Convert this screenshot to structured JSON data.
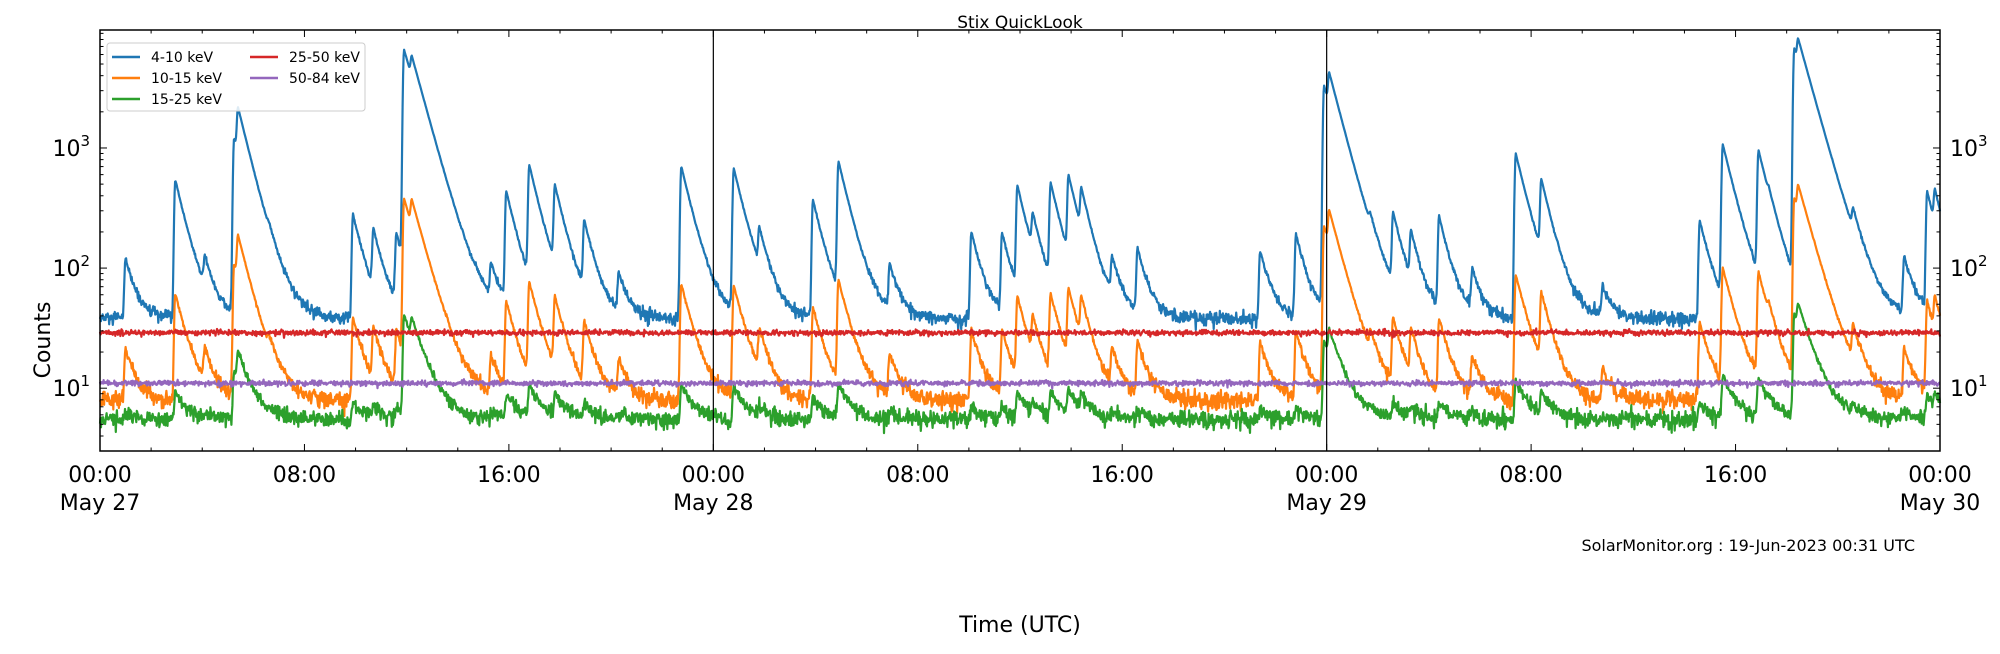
{
  "chart_data": {
    "type": "line",
    "title": "Stix QuickLook",
    "xlabel": "Time (UTC)",
    "ylabel": "Counts",
    "yscale": "log",
    "ylim": [
      3.0,
      9600
    ],
    "xlim": [
      "May 27 00:00",
      "May 30 00:00"
    ],
    "yticks": [
      {
        "value": 10,
        "label": "10",
        "exp": "1"
      },
      {
        "value": 100,
        "label": "10",
        "exp": "2"
      },
      {
        "value": 1000,
        "label": "10",
        "exp": "3"
      }
    ],
    "xticks": [
      {
        "time": "May 27 00:00",
        "label": "00:00",
        "sublabel": "May 27"
      },
      {
        "time": "May 27 08:00",
        "label": "08:00",
        "sublabel": ""
      },
      {
        "time": "May 27 16:00",
        "label": "16:00",
        "sublabel": ""
      },
      {
        "time": "May 28 00:00",
        "label": "00:00",
        "sublabel": "May 28"
      },
      {
        "time": "May 28 08:00",
        "label": "08:00",
        "sublabel": ""
      },
      {
        "time": "May 28 16:00",
        "label": "16:00",
        "sublabel": ""
      },
      {
        "time": "May 29 00:00",
        "label": "00:00",
        "sublabel": "May 29"
      },
      {
        "time": "May 29 08:00",
        "label": "08:00",
        "sublabel": ""
      },
      {
        "time": "May 29 16:00",
        "label": "16:00",
        "sublabel": ""
      },
      {
        "time": "May 30 00:00",
        "label": "00:00",
        "sublabel": "May 30"
      }
    ],
    "day_boundaries": [
      "May 28 00:00",
      "May 29 00:00"
    ],
    "grid": false,
    "legend": "top-left",
    "series": [
      {
        "name": "4-10 keV",
        "color": "#1f77b4",
        "baseline": 38
      },
      {
        "name": "10-15 keV",
        "color": "#ff7f0e",
        "baseline": 8
      },
      {
        "name": "15-25 keV",
        "color": "#2ca02c",
        "baseline": 5.5
      },
      {
        "name": "25-50 keV",
        "color": "#d62728",
        "baseline": 29
      },
      {
        "name": "50-84 keV",
        "color": "#9467bd",
        "baseline": 11
      }
    ],
    "flares_4_10_keV": [
      {
        "time": "May 27 01:00",
        "peak": 120
      },
      {
        "time": "May 27 02:57",
        "peak": 540
      },
      {
        "time": "May 27 04:06",
        "peak": 90
      },
      {
        "time": "May 27 05:15",
        "peak": 1200
      },
      {
        "time": "May 27 05:24",
        "peak": 1330
      },
      {
        "time": "May 27 06:36",
        "peak": 60
      },
      {
        "time": "May 27 09:54",
        "peak": 280
      },
      {
        "time": "May 27 10:42",
        "peak": 180
      },
      {
        "time": "May 27 11:36",
        "peak": 180
      },
      {
        "time": "May 27 11:54",
        "peak": 6500
      },
      {
        "time": "May 27 12:12",
        "peak": 2000
      },
      {
        "time": "May 27 15:18",
        "peak": 90
      },
      {
        "time": "May 27 15:54",
        "peak": 420
      },
      {
        "time": "May 27 16:48",
        "peak": 670
      },
      {
        "time": "May 27 17:48",
        "peak": 420
      },
      {
        "time": "May 27 18:57",
        "peak": 220
      },
      {
        "time": "May 27 20:18",
        "peak": 85
      },
      {
        "time": "May 27 22:45",
        "peak": 700
      },
      {
        "time": "May 28 00:48",
        "peak": 670
      },
      {
        "time": "May 28 01:48",
        "peak": 150
      },
      {
        "time": "May 28 03:54",
        "peak": 370
      },
      {
        "time": "May 28 04:54",
        "peak": 740
      },
      {
        "time": "May 28 06:54",
        "peak": 100
      },
      {
        "time": "May 28 10:06",
        "peak": 200
      },
      {
        "time": "May 28 11:18",
        "peak": 190
      },
      {
        "time": "May 28 11:54",
        "peak": 450
      },
      {
        "time": "May 28 12:30",
        "peak": 180
      },
      {
        "time": "May 28 13:12",
        "peak": 470
      },
      {
        "time": "May 28 13:54",
        "peak": 500
      },
      {
        "time": "May 28 14:24",
        "peak": 290
      },
      {
        "time": "May 28 15:36",
        "peak": 100
      },
      {
        "time": "May 28 16:36",
        "peak": 140
      },
      {
        "time": "May 28 21:24",
        "peak": 140
      },
      {
        "time": "May 28 22:48",
        "peak": 190
      },
      {
        "time": "May 28 23:54",
        "peak": 3300
      },
      {
        "time": "May 29 00:06",
        "peak": 2000
      },
      {
        "time": "May 29 01:42",
        "peak": 85
      },
      {
        "time": "May 29 02:36",
        "peak": 250
      },
      {
        "time": "May 29 03:18",
        "peak": 160
      },
      {
        "time": "May 29 04:24",
        "peak": 260
      },
      {
        "time": "May 29 05:42",
        "peak": 90
      },
      {
        "time": "May 29 07:24",
        "peak": 900
      },
      {
        "time": "May 29 08:24",
        "peak": 450
      },
      {
        "time": "May 29 10:48",
        "peak": 70
      },
      {
        "time": "May 29 14:36",
        "peak": 250
      },
      {
        "time": "May 29 15:30",
        "peak": 1050
      },
      {
        "time": "May 29 16:54",
        "peak": 900
      },
      {
        "time": "May 29 17:18",
        "peak": 85
      },
      {
        "time": "May 29 18:18",
        "peak": 6700
      },
      {
        "time": "May 29 18:27",
        "peak": 3000
      },
      {
        "time": "May 29 20:36",
        "peak": 140
      },
      {
        "time": "May 29 22:36",
        "peak": 120
      },
      {
        "time": "May 29 23:30",
        "peak": 430
      },
      {
        "time": "May 29 23:48",
        "peak": 260
      }
    ],
    "annotation": "SolarMonitor.org : 19-Jun-2023 00:31 UTC"
  }
}
